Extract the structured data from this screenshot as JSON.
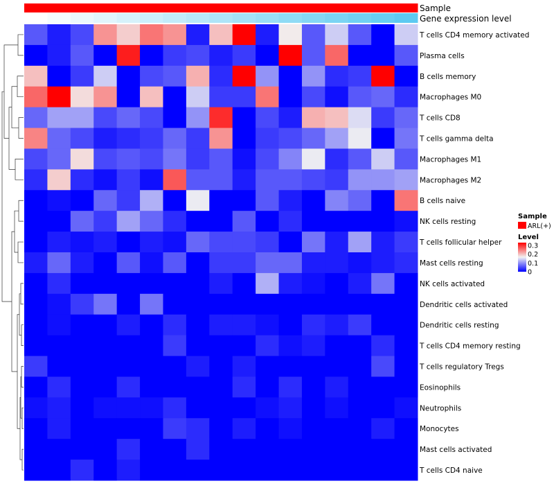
{
  "chart_data": {
    "type": "heatmap",
    "annotation_rows": [
      {
        "name": "Sample",
        "label": "Sample"
      },
      {
        "name": "Gene expression level",
        "label": "Gene expression level"
      }
    ],
    "gene_expression_level": [
      0.0,
      0.06,
      0.12,
      0.18,
      0.24,
      0.3,
      0.36,
      0.42,
      0.48,
      0.54,
      0.6,
      0.66,
      0.72,
      0.78,
      0.84,
      0.9,
      0.96
    ],
    "rows": [
      "T cells CD4 memory activated",
      "Plasma cells",
      "B cells memory",
      "Macrophages M0",
      "T cells CD8",
      "T cells gamma delta",
      "Macrophages M1",
      "Macrophages M2",
      "B cells naive",
      "NK cells resting",
      "T cells follicular helper",
      "Mast cells resting",
      "NK cells activated",
      "Dendritic cells activated",
      "Dendritic cells resting",
      "T cells CD4 memory resting",
      "T cells regulatory  Tregs",
      "Eosinophils",
      "Neutrophils",
      "Monocytes",
      "Mast cells activated",
      "T cells CD4 naive"
    ],
    "n_samples": 17,
    "values": [
      [
        0.06,
        0.02,
        0.05,
        0.23,
        0.19,
        0.25,
        0.23,
        0.02,
        0.2,
        0.33,
        0.02,
        0.17,
        0.06,
        0.14,
        0.06,
        0.0,
        0.14
      ],
      [
        0.0,
        0.02,
        0.06,
        0.0,
        0.31,
        0.0,
        0.04,
        0.05,
        0.02,
        0.04,
        0.0,
        0.33,
        0.06,
        0.26,
        0.0,
        0.0,
        0.06
      ],
      [
        0.2,
        0.0,
        0.04,
        0.14,
        0.0,
        0.05,
        0.06,
        0.21,
        0.03,
        0.33,
        0.1,
        0.0,
        0.1,
        0.03,
        0.04,
        0.33,
        0.0
      ],
      [
        0.26,
        0.33,
        0.18,
        0.23,
        0.0,
        0.2,
        0.0,
        0.14,
        0.04,
        0.04,
        0.25,
        0.0,
        0.05,
        0.01,
        0.06,
        0.07,
        0.03
      ],
      [
        0.07,
        0.11,
        0.11,
        0.05,
        0.07,
        0.05,
        0.0,
        0.1,
        0.3,
        0.0,
        0.05,
        0.02,
        0.21,
        0.2,
        0.15,
        0.04,
        0.07
      ],
      [
        0.24,
        0.07,
        0.05,
        0.02,
        0.03,
        0.04,
        0.07,
        0.04,
        0.23,
        0.0,
        0.04,
        0.05,
        0.07,
        0.11,
        0.16,
        0.0,
        0.08
      ],
      [
        0.05,
        0.07,
        0.18,
        0.05,
        0.06,
        0.05,
        0.08,
        0.04,
        0.06,
        0.01,
        0.05,
        0.09,
        0.16,
        0.03,
        0.06,
        0.14,
        0.06
      ],
      [
        0.03,
        0.19,
        0.03,
        0.01,
        0.04,
        0.01,
        0.27,
        0.06,
        0.06,
        0.02,
        0.06,
        0.06,
        0.05,
        0.04,
        0.1,
        0.1,
        0.11
      ],
      [
        0.0,
        0.01,
        0.0,
        0.07,
        0.04,
        0.12,
        0.0,
        0.16,
        0.0,
        0.0,
        0.06,
        0.02,
        0.0,
        0.09,
        0.07,
        0.0,
        0.25
      ],
      [
        0.0,
        0.0,
        0.07,
        0.04,
        0.11,
        0.07,
        0.03,
        0.0,
        0.0,
        0.06,
        0.0,
        0.03,
        0.0,
        0.0,
        0.0,
        0.0,
        0.01
      ],
      [
        0.0,
        0.02,
        0.01,
        0.02,
        0.0,
        0.02,
        0.01,
        0.07,
        0.05,
        0.05,
        0.04,
        0.0,
        0.08,
        0.02,
        0.11,
        0.02,
        0.04
      ],
      [
        0.02,
        0.07,
        0.02,
        0.0,
        0.06,
        0.01,
        0.06,
        0.0,
        0.04,
        0.04,
        0.07,
        0.07,
        0.02,
        0.02,
        0.01,
        0.02,
        0.03
      ],
      [
        0.0,
        0.03,
        0.0,
        0.0,
        0.0,
        0.0,
        0.0,
        0.0,
        0.02,
        0.0,
        0.12,
        0.02,
        0.01,
        0.0,
        0.02,
        0.08,
        0.0
      ],
      [
        0.0,
        0.01,
        0.04,
        0.08,
        0.0,
        0.08,
        0.0,
        0.0,
        0.0,
        0.0,
        0.0,
        0.0,
        0.0,
        0.0,
        0.0,
        0.0,
        0.0
      ],
      [
        0.0,
        0.01,
        0.0,
        0.0,
        0.02,
        0.0,
        0.03,
        0.0,
        0.02,
        0.02,
        0.01,
        0.0,
        0.03,
        0.02,
        0.04,
        0.0,
        0.0
      ],
      [
        0.0,
        0.0,
        0.0,
        0.0,
        0.0,
        0.0,
        0.04,
        0.0,
        0.0,
        0.0,
        0.03,
        0.01,
        0.02,
        0.0,
        0.0,
        0.03,
        0.0
      ],
      [
        0.04,
        0.0,
        0.0,
        0.0,
        0.0,
        0.0,
        0.0,
        0.02,
        0.0,
        0.02,
        0.0,
        0.0,
        0.0,
        0.0,
        0.0,
        0.05,
        0.0
      ],
      [
        0.0,
        0.03,
        0.0,
        0.0,
        0.03,
        0.0,
        0.0,
        0.0,
        0.0,
        0.03,
        0.0,
        0.03,
        0.0,
        0.02,
        0.0,
        0.0,
        0.0
      ],
      [
        0.01,
        0.02,
        0.0,
        0.01,
        0.01,
        0.01,
        0.03,
        0.0,
        0.0,
        0.0,
        0.01,
        0.02,
        0.0,
        0.01,
        0.0,
        0.0,
        0.01
      ],
      [
        0.0,
        0.02,
        0.0,
        0.0,
        0.0,
        0.0,
        0.04,
        0.03,
        0.0,
        0.02,
        0.0,
        0.01,
        0.0,
        0.0,
        0.0,
        0.02,
        0.0
      ],
      [
        0.0,
        0.0,
        0.0,
        0.0,
        0.03,
        0.0,
        0.0,
        0.03,
        0.0,
        0.0,
        0.0,
        0.0,
        0.0,
        0.0,
        0.0,
        0.0,
        0.0
      ],
      [
        0.0,
        0.0,
        0.03,
        0.0,
        0.02,
        0.0,
        0.0,
        0.0,
        0.0,
        0.0,
        0.0,
        0.0,
        0.0,
        0.0,
        0.0,
        0.0,
        0.0
      ]
    ],
    "color_scale": {
      "min": 0,
      "max": 0.33,
      "low": "#0000ff",
      "mid": "#f2f2f2",
      "mid_value": 0.165,
      "high": "#ff0000"
    },
    "annotation_colors": {
      "sample": "#ff0000",
      "expression_low": "#ffffff",
      "expression_high": "#56c8f0"
    },
    "legend": {
      "sample_title": "Sample",
      "sample_entries": [
        {
          "label": "ARL(+)",
          "color": "#ff0000"
        }
      ],
      "level_title": "Level",
      "level_ticks": [
        {
          "label": "0.3",
          "value": 0.3
        },
        {
          "label": "0.2",
          "value": 0.2
        },
        {
          "label": "0.1",
          "value": 0.1
        },
        {
          "label": "0",
          "value": 0
        }
      ]
    },
    "dendrogram": "row clustering tree on left side"
  }
}
